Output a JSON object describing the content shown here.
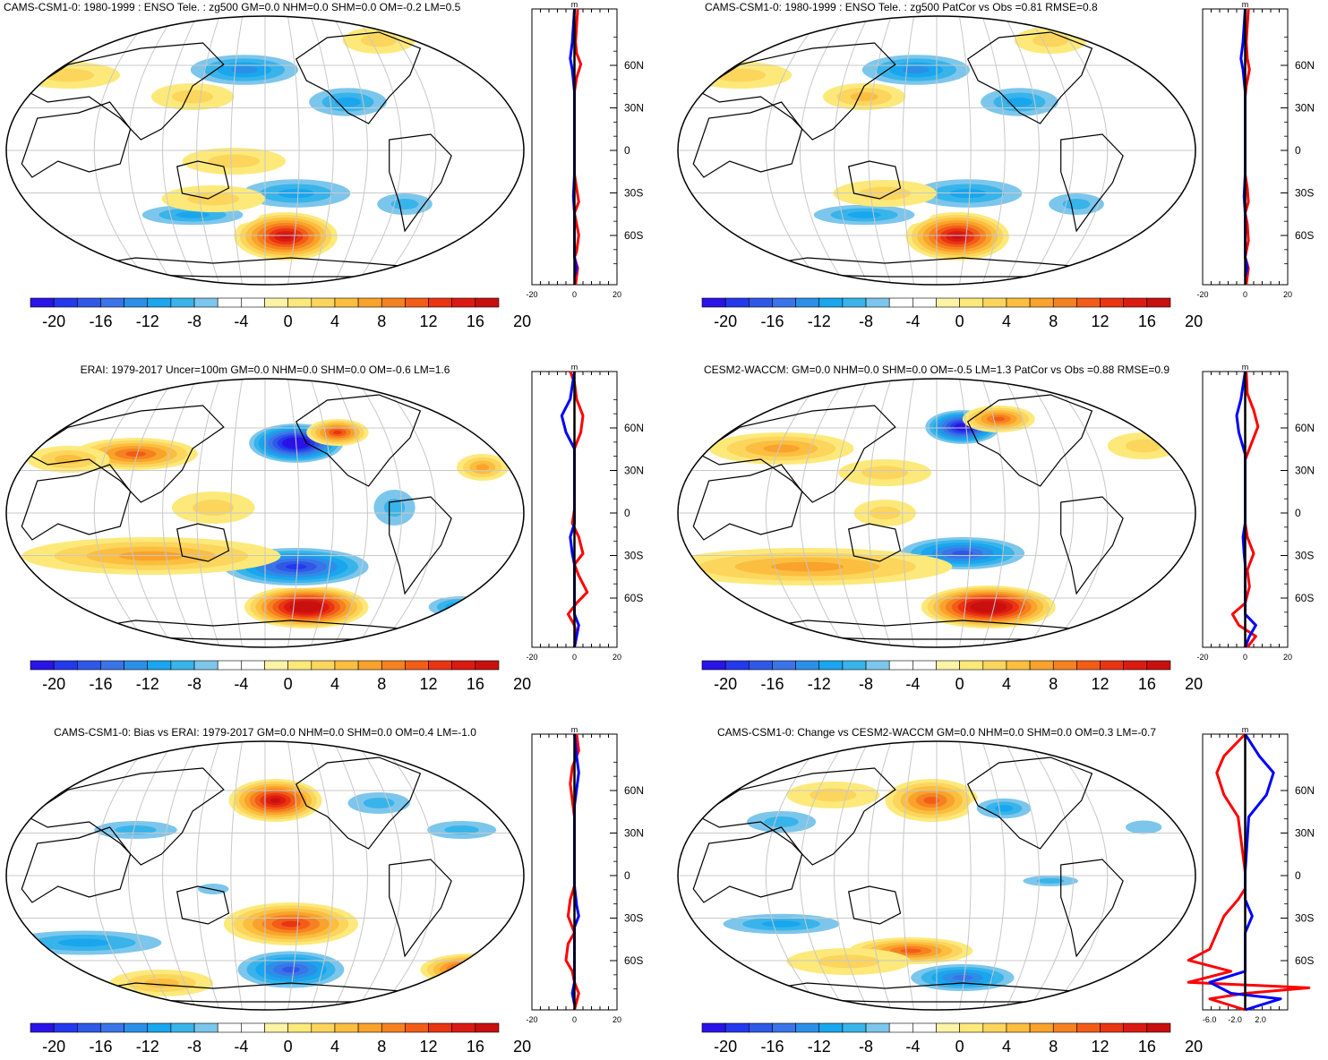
{
  "figure": {
    "colorbar_labels": [
      "-20",
      "-16",
      "-12",
      "-8",
      "-4",
      "0",
      "4",
      "8",
      "12",
      "16",
      "20"
    ],
    "colorbar_colors": [
      "#2a13e6",
      "#2438ee",
      "#2f58e6",
      "#3a74e8",
      "#2b8fe8",
      "#19a6ee",
      "#38b4ea",
      "#7cc6ec",
      "#ffffff",
      "#ffffff",
      "#fcf3a6",
      "#fde97a",
      "#fcd55c",
      "#fbbe3f",
      "#f9a22c",
      "#f68120",
      "#f25c17",
      "#ea3412",
      "#db1a12",
      "#c9100f"
    ],
    "lat_labels": [
      "60N",
      "30N",
      "0",
      "30S",
      "60S"
    ],
    "profile_unit": "m",
    "panels": [
      {
        "title": "CAMS-CSM1-0: 1980-1999 : ENSO Tele. : zg500 GM=0.0 NHM=0.0 SHM=0.0 OM=-0.2 LM=0.5",
        "profile_xticks": [
          "-20",
          "0",
          "20"
        ]
      },
      {
        "title": "CAMS-CSM1-0: 1980-1999 : ENSO Tele. : zg500 PatCor vs Obs =0.81 RMSE=0.8",
        "profile_xticks": [
          "-20",
          "0",
          "20"
        ]
      },
      {
        "title": "ERAI: 1979-2017 Uncer=100m GM=0.0 NHM=0.0 SHM=0.0 OM=-0.6 LM=1.6",
        "profile_xticks": [
          "-20",
          "0",
          "20"
        ]
      },
      {
        "title": "CESM2-WACCM: GM=0.0 NHM=0.0 SHM=0.0 OM=-0.5 LM=1.3 PatCor vs Obs =0.88 RMSE=0.9",
        "profile_xticks": [
          "-20",
          "0",
          "20"
        ]
      },
      {
        "title": "CAMS-CSM1-0: Bias vs ERAI: 1979-2017 GM=0.0 NHM=0.0 SHM=0.0 OM=0.4 LM=-1.0",
        "profile_xticks": [
          "-20",
          "0",
          "20"
        ]
      },
      {
        "title": "CAMS-CSM1-0: Change vs CESM2-WACCM GM=0.0 NHM=0.0 SHM=0.0 OM=0.3 LM=-0.7",
        "profile_xticks": [
          "-6.0",
          "-2.0",
          "2.0"
        ]
      }
    ]
  }
}
